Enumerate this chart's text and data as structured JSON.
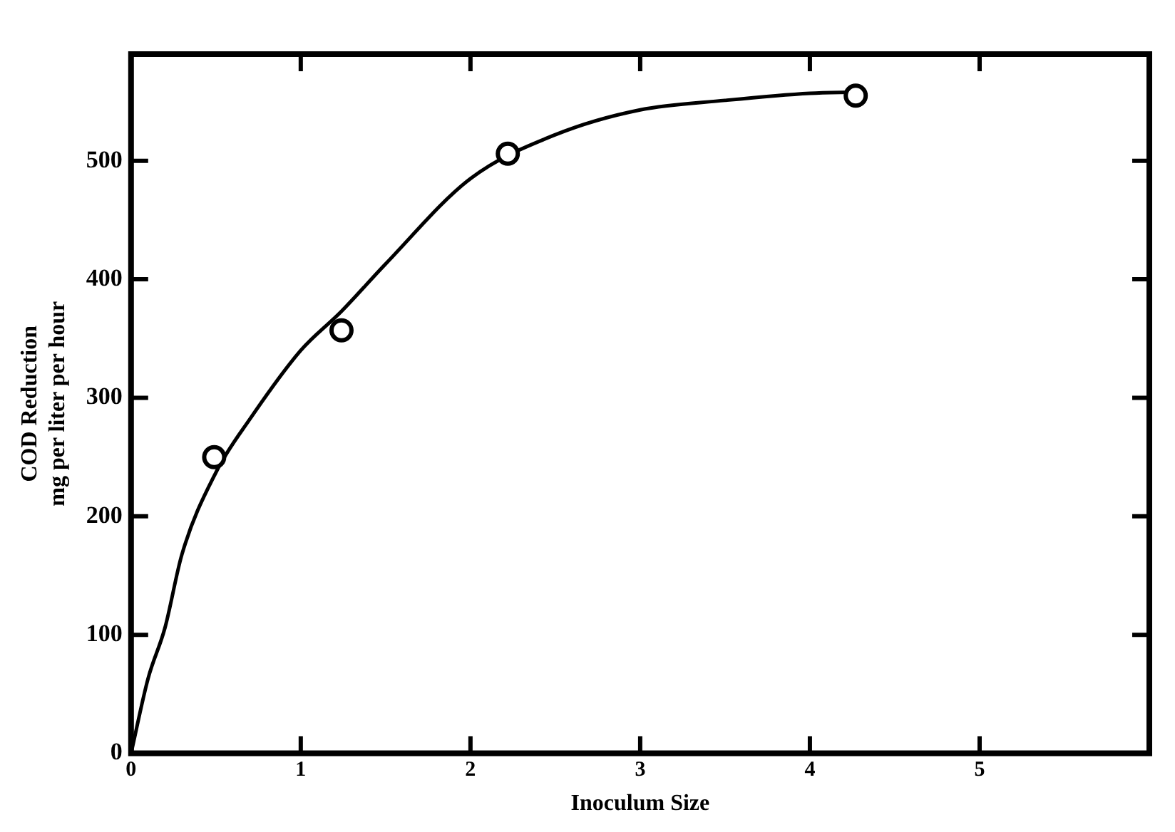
{
  "chart_data": {
    "type": "scatter",
    "xlabel": "Inoculum Size",
    "ylabel": "COD Reduction\nmg per liter per hour",
    "xlim": [
      0,
      6
    ],
    "xticks": [
      0,
      1,
      2,
      3,
      4,
      5
    ],
    "ylim": [
      0,
      590
    ],
    "yticks": [
      0,
      100,
      200,
      300,
      400,
      500
    ],
    "grid": false,
    "legend": false,
    "marker": "circle",
    "series": [
      {
        "color": "#000000",
        "x": [
          0.49,
          1.24,
          2.22,
          4.27
        ],
        "values": [
          250,
          357,
          506,
          555
        ]
      },
      {
        "type": "line",
        "marker": "none",
        "line_style": "solid",
        "color": "#000000",
        "x": [
          0,
          0.1,
          0.2,
          0.3,
          0.5,
          0.7,
          1,
          1.24,
          1.5,
          2,
          2.5,
          3,
          3.5,
          4,
          4.27
        ],
        "values": [
          0,
          63,
          106,
          168,
          237,
          282,
          340,
          373,
          413,
          485,
          522,
          543,
          551,
          557,
          558
        ]
      }
    ]
  }
}
